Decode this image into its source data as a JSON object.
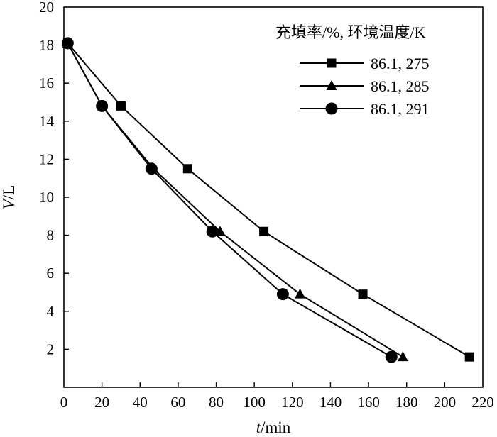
{
  "chart_data": {
    "type": "line",
    "xlabel_italic": "t",
    "xlabel_unit": "/min",
    "ylabel_italic": "V",
    "ylabel_unit": "/L",
    "xlim": [
      0,
      220
    ],
    "ylim": [
      0,
      20
    ],
    "xticks": [
      0,
      20,
      40,
      60,
      80,
      100,
      120,
      140,
      160,
      180,
      200,
      220
    ],
    "yticks": [
      2,
      4,
      6,
      8,
      10,
      12,
      14,
      16,
      18,
      20
    ],
    "grid": false,
    "legend_title": "充填率/%, 环境温度/K",
    "legend_position": "top-right",
    "series": [
      {
        "name": "86.1, 275",
        "marker": "square",
        "color": "#000000",
        "x": [
          2,
          30,
          65,
          105,
          157,
          213
        ],
        "y": [
          18.1,
          14.8,
          11.5,
          8.2,
          4.9,
          1.6
        ]
      },
      {
        "name": "86.1, 285",
        "marker": "triangle",
        "color": "#000000",
        "x": [
          2,
          20,
          47,
          82,
          124,
          178
        ],
        "y": [
          18.1,
          14.8,
          11.5,
          8.2,
          4.9,
          1.6
        ]
      },
      {
        "name": "86.1, 291",
        "marker": "circle",
        "color": "#000000",
        "x": [
          2,
          20,
          46,
          78,
          115,
          172
        ],
        "y": [
          18.1,
          14.8,
          11.5,
          8.2,
          4.9,
          1.6
        ]
      }
    ]
  }
}
